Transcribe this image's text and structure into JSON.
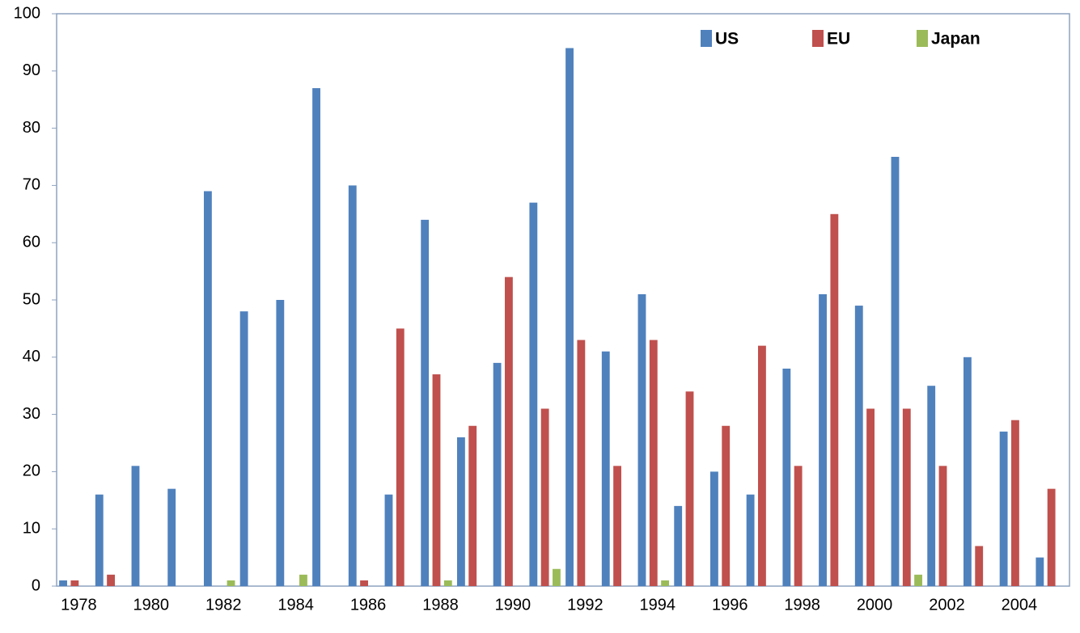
{
  "chart_data": {
    "type": "bar",
    "categories": [
      "1978",
      null,
      "1980",
      null,
      "1982",
      null,
      "1984",
      null,
      "1986",
      null,
      "1988",
      null,
      "1990",
      null,
      "1992",
      null,
      "1994",
      null,
      "1996",
      null,
      "1998",
      null,
      "2000",
      null,
      "2002",
      null,
      "2004",
      null
    ],
    "series": [
      {
        "name": "US",
        "color": "#4f81bd",
        "values": [
          1,
          16,
          21,
          17,
          69,
          48,
          50,
          87,
          70,
          16,
          64,
          26,
          39,
          67,
          94,
          41,
          51,
          14,
          20,
          16,
          38,
          51,
          49,
          75,
          35,
          40,
          27,
          5
        ]
      },
      {
        "name": "EU",
        "color": "#c0504d",
        "values": [
          1,
          2,
          0,
          0,
          0,
          0,
          0,
          0,
          1,
          45,
          37,
          28,
          54,
          31,
          43,
          21,
          43,
          34,
          28,
          42,
          21,
          65,
          31,
          31,
          21,
          7,
          29,
          17
        ]
      },
      {
        "name": "Japan",
        "color": "#9bbb59",
        "values": [
          0,
          0,
          0,
          0,
          1,
          0,
          2,
          0,
          0,
          0,
          1,
          0,
          0,
          3,
          0,
          0,
          1,
          0,
          0,
          0,
          0,
          0,
          0,
          2,
          0,
          0,
          0,
          0
        ]
      }
    ],
    "ylim": [
      0,
      100
    ],
    "yticks": [
      0,
      10,
      20,
      30,
      40,
      50,
      60,
      70,
      80,
      90,
      100
    ],
    "grid": false,
    "legend": "top-right"
  }
}
